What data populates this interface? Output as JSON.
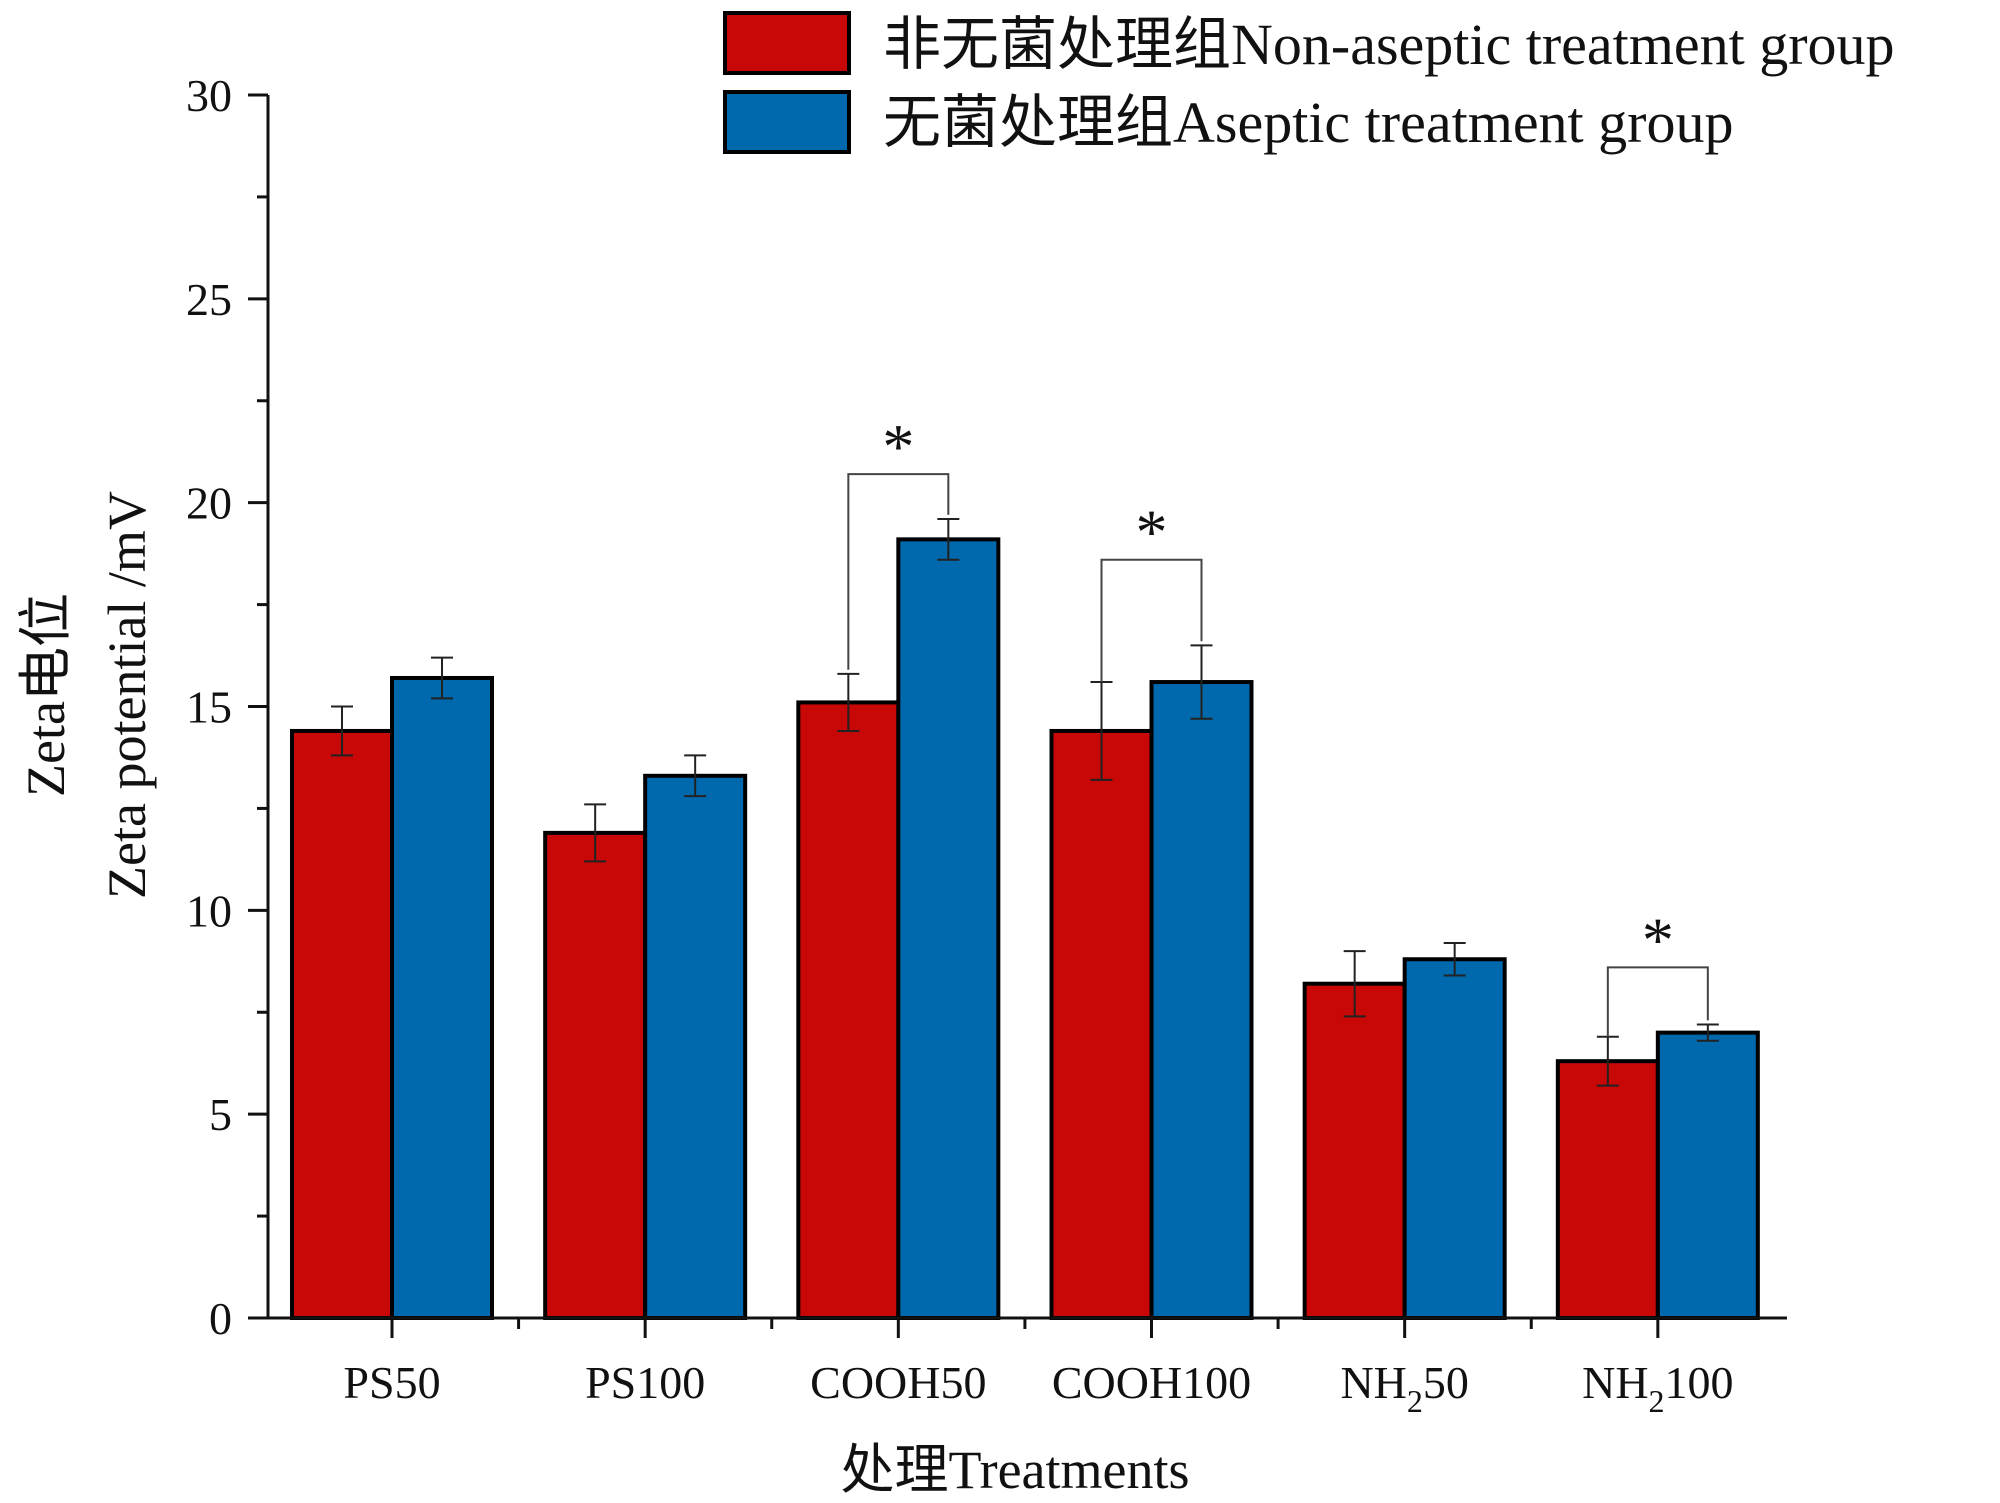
{
  "chart_data": {
    "type": "bar",
    "title": "",
    "xlabel": "处理Treatments",
    "ylabel_cn": "Zeta电位",
    "ylabel_en": "Zeta potential /mV",
    "ylim": [
      0,
      30
    ],
    "yticks": [
      0,
      5,
      10,
      15,
      20,
      25,
      30
    ],
    "ytick_labels": [
      "0",
      "5",
      "10",
      "15",
      "20",
      "25",
      "30"
    ],
    "categories": [
      {
        "prefix": "PS50",
        "sub": "",
        "suffix": ""
      },
      {
        "prefix": "PS100",
        "sub": "",
        "suffix": ""
      },
      {
        "prefix": "COOH50",
        "sub": "",
        "suffix": ""
      },
      {
        "prefix": "COOH100",
        "sub": "",
        "suffix": ""
      },
      {
        "prefix": "NH",
        "sub": "2",
        "suffix": "50"
      },
      {
        "prefix": "NH",
        "sub": "2",
        "suffix": "100"
      }
    ],
    "series": [
      {
        "name": "非无菌处理组Non-aseptic treatment group",
        "color": "#c80707",
        "values": [
          14.4,
          11.9,
          15.1,
          14.4,
          8.2,
          6.3
        ],
        "errors": [
          0.6,
          0.7,
          0.7,
          1.2,
          0.8,
          0.6
        ]
      },
      {
        "name": "无菌处理组Aseptic treatment group",
        "color": "#0068ad",
        "values": [
          15.7,
          13.3,
          19.1,
          15.6,
          8.8,
          7.0
        ],
        "errors": [
          0.5,
          0.5,
          0.5,
          0.9,
          0.4,
          0.2
        ]
      }
    ],
    "significance": [
      {
        "category_index": 2,
        "label": "*",
        "left_top": 15.9,
        "right_top": 19.7,
        "bracket": 20.7
      },
      {
        "category_index": 3,
        "label": "*",
        "left_top": 15.6,
        "right_top": 16.6,
        "bracket": 18.6
      },
      {
        "category_index": 5,
        "label": "*",
        "left_top": 6.9,
        "right_top": 7.3,
        "bracket": 8.6
      }
    ],
    "legend_position": "top-right",
    "grid": false
  }
}
